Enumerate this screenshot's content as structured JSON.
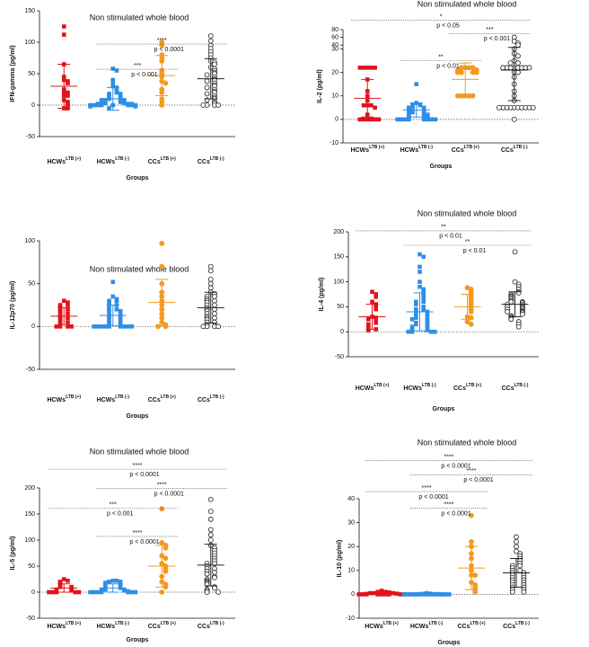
{
  "chart_data": [
    {
      "type": "strip",
      "title": "Non stimulated whole blood",
      "ylabel": "IFN-gamma (pg/ml)",
      "xlabel": "Groups",
      "categories": [
        "HCWs",
        "HCWs",
        "CCs",
        "CCs"
      ],
      "category_superscripts": [
        "LTB (+)",
        "LTB (-)",
        "LTB (+)",
        "LTB (-)"
      ],
      "ylim": [
        -50,
        150
      ],
      "yticks": [
        -50,
        0,
        50,
        100,
        150
      ],
      "series": [
        {
          "color": "#e3121b",
          "marker": "square",
          "filled": true,
          "mean": 30,
          "sd": 35,
          "values": [
            125,
            112,
            65,
            45,
            40,
            38,
            35,
            25,
            20,
            20,
            15,
            15,
            8,
            5,
            3,
            0,
            -5,
            -5
          ]
        },
        {
          "color": "#2f8fe6",
          "marker": "square",
          "filled": true,
          "mean": 10,
          "sd": 18,
          "values": [
            58,
            55,
            40,
            35,
            30,
            28,
            25,
            22,
            20,
            18,
            18,
            15,
            15,
            12,
            12,
            10,
            10,
            8,
            8,
            8,
            5,
            5,
            5,
            5,
            3,
            3,
            3,
            2,
            2,
            2,
            0,
            0,
            0,
            0,
            0,
            0,
            0,
            0,
            -2,
            -2,
            -5
          ]
        },
        {
          "color": "#f39a1e",
          "marker": "circle",
          "filled": true,
          "mean": 47,
          "sd": 32,
          "values": [
            100,
            95,
            80,
            75,
            70,
            55,
            50,
            45,
            38,
            35,
            25,
            20,
            10,
            5,
            0
          ]
        },
        {
          "color": "#222222",
          "marker": "circle",
          "filled": false,
          "mean": 42,
          "sd": 32,
          "values": [
            110,
            102,
            95,
            90,
            85,
            80,
            75,
            70,
            68,
            65,
            60,
            58,
            55,
            52,
            50,
            48,
            45,
            42,
            40,
            38,
            35,
            32,
            30,
            28,
            25,
            22,
            20,
            18,
            15,
            12,
            10,
            8,
            5,
            3,
            0,
            0,
            0,
            0
          ]
        }
      ],
      "annotations": [
        {
          "groups": [
            1,
            3
          ],
          "y": 97,
          "stars": "****",
          "label": "p < 0.0001"
        },
        {
          "groups": [
            1,
            2
          ],
          "y": 57,
          "stars": "***",
          "label": "p < 0.001"
        }
      ]
    },
    {
      "type": "strip",
      "title": "Non stimulated whole blood",
      "ylabel": "IL-2 (pg/ml)",
      "xlabel": "Groups",
      "categories": [
        "HCWs",
        "HCWs",
        "CCs",
        "CCs"
      ],
      "category_superscripts": [
        "LTB (+)",
        "LTB (-)",
        "LTB (+)",
        "LTB (-)"
      ],
      "ylim": [
        -10,
        80
      ],
      "yticks": [
        -10,
        0,
        10,
        20,
        30,
        40,
        60,
        80
      ],
      "ybreak": 30,
      "series": [
        {
          "color": "#e3121b",
          "marker": "square",
          "filled": true,
          "mean": 9,
          "sd": 8,
          "values": [
            22,
            22,
            22,
            22,
            22,
            17,
            12,
            10,
            8,
            6,
            6,
            6,
            5,
            2,
            0,
            0,
            0,
            0,
            0,
            0
          ]
        },
        {
          "color": "#2f8fe6",
          "marker": "square",
          "filled": true,
          "mean": 4,
          "sd": 3,
          "values": [
            15,
            7,
            6,
            6,
            5,
            5,
            5,
            4,
            4,
            3,
            3,
            3,
            2,
            2,
            2,
            1,
            1,
            1,
            0,
            0,
            0,
            0,
            0,
            0,
            0,
            0
          ]
        },
        {
          "color": "#f39a1e",
          "marker": "circle",
          "filled": true,
          "mean": 17,
          "sd": 7,
          "values": [
            22,
            22,
            22,
            22,
            21,
            21,
            20,
            20,
            20,
            20,
            10,
            10,
            10,
            10,
            10
          ]
        },
        {
          "color": "#222222",
          "marker": "circle",
          "filled": false,
          "mean": 21,
          "sd": 13,
          "values": [
            60,
            50,
            45,
            40,
            30,
            28,
            27,
            25,
            24,
            24,
            22,
            22,
            22,
            22,
            22,
            22,
            22,
            22,
            20,
            20,
            18,
            15,
            12,
            10,
            8,
            5,
            5,
            5,
            5,
            5,
            5,
            5,
            5,
            5,
            5,
            0
          ]
        }
      ],
      "annotations": [
        {
          "groups": [
            0,
            3
          ],
          "y": 104,
          "stars": "*",
          "label": "p < 0.05"
        },
        {
          "groups": [
            2,
            3
          ],
          "y": 70,
          "stars": "***",
          "label": "p < 0.001"
        },
        {
          "groups": [
            1,
            2
          ],
          "y": 25,
          "stars": "**",
          "label": "p < 0.01"
        }
      ]
    },
    {
      "type": "strip",
      "title": "Non stimulated whole blood",
      "ylabel": "IL-12p70 (pg/ml)",
      "xlabel": "Groups",
      "categories": [
        "HCWs",
        "HCWs",
        "CCs",
        "CCs"
      ],
      "category_superscripts": [
        "LTB (+)",
        "LTB (-)",
        "LTB (+)",
        "LTB (-)"
      ],
      "ylim": [
        -50,
        100
      ],
      "yticks": [
        -50,
        0,
        50,
        100
      ],
      "series": [
        {
          "color": "#e3121b",
          "marker": "square",
          "filled": true,
          "mean": 12,
          "sd": 10,
          "values": [
            30,
            28,
            25,
            25,
            22,
            20,
            20,
            18,
            15,
            15,
            12,
            10,
            10,
            8,
            5,
            5,
            2,
            0,
            0,
            0,
            0
          ]
        },
        {
          "color": "#2f8fe6",
          "marker": "square",
          "filled": true,
          "mean": 13,
          "sd": 12,
          "values": [
            52,
            35,
            32,
            30,
            30,
            28,
            25,
            25,
            22,
            20,
            20,
            18,
            18,
            15,
            15,
            12,
            12,
            10,
            10,
            8,
            8,
            5,
            5,
            3,
            2,
            0,
            0,
            0,
            0,
            0,
            0,
            0,
            0,
            0
          ]
        },
        {
          "color": "#f39a1e",
          "marker": "circle",
          "filled": true,
          "mean": 28,
          "sd": 27,
          "values": [
            97,
            70,
            50,
            40,
            35,
            30,
            25,
            20,
            15,
            10,
            5,
            2,
            0,
            0
          ]
        },
        {
          "color": "#222222",
          "marker": "circle",
          "filled": false,
          "mean": 22,
          "sd": 18,
          "values": [
            70,
            65,
            55,
            50,
            45,
            40,
            38,
            35,
            35,
            32,
            30,
            30,
            28,
            25,
            25,
            22,
            20,
            20,
            18,
            15,
            15,
            12,
            10,
            10,
            8,
            5,
            5,
            2,
            0,
            0,
            0,
            0
          ]
        }
      ],
      "annotations": []
    },
    {
      "type": "strip",
      "title": "Non stimulated whole blood",
      "ylabel": "IL-4 (pg/ml)",
      "xlabel": "Groups",
      "categories": [
        "HCWs",
        "HCWs",
        "CCs",
        "CCs"
      ],
      "category_superscripts": [
        "LTB (+)",
        "LTB (-)",
        "LTB (+)",
        "LTB (-)"
      ],
      "ylim": [
        -50,
        200
      ],
      "yticks": [
        -50,
        0,
        50,
        100,
        150,
        200
      ],
      "series": [
        {
          "color": "#e3121b",
          "marker": "square",
          "filled": true,
          "mean": 30,
          "sd": 25,
          "values": [
            80,
            75,
            70,
            60,
            55,
            50,
            45,
            30,
            28,
            25,
            20,
            18,
            15,
            12,
            10,
            5,
            5,
            3
          ]
        },
        {
          "color": "#2f8fe6",
          "marker": "square",
          "filled": true,
          "mean": 40,
          "sd": 38,
          "values": [
            155,
            150,
            130,
            120,
            100,
            90,
            85,
            80,
            75,
            70,
            65,
            60,
            60,
            55,
            50,
            45,
            45,
            40,
            40,
            35,
            35,
            30,
            30,
            28,
            25,
            25,
            22,
            20,
            18,
            15,
            15,
            12,
            10,
            10,
            8,
            5,
            5,
            3,
            2,
            0,
            0,
            0,
            0
          ]
        },
        {
          "color": "#f39a1e",
          "marker": "circle",
          "filled": true,
          "mean": 50,
          "sd": 25,
          "values": [
            88,
            85,
            80,
            75,
            70,
            65,
            60,
            55,
            50,
            45,
            40,
            30,
            28,
            20,
            15
          ]
        },
        {
          "color": "#222222",
          "marker": "circle",
          "filled": false,
          "mean": 55,
          "sd": 25,
          "values": [
            160,
            100,
            95,
            90,
            85,
            80,
            78,
            75,
            72,
            70,
            68,
            65,
            62,
            60,
            60,
            58,
            55,
            55,
            52,
            50,
            50,
            48,
            45,
            45,
            42,
            40,
            40,
            38,
            35,
            32,
            30,
            28,
            25,
            20,
            15,
            10
          ]
        }
      ],
      "annotations": [
        {
          "groups": [
            0,
            3
          ],
          "y": 202,
          "stars": "**",
          "label": "p < 0.01"
        },
        {
          "groups": [
            1,
            3
          ],
          "y": 173,
          "stars": "**",
          "label": "p < 0.01"
        }
      ]
    },
    {
      "type": "strip",
      "title": "Non stimulated whole blood",
      "ylabel": "IL-5 (pg/ml)",
      "xlabel": "Groups",
      "categories": [
        "HCWs",
        "HCWs",
        "CCs",
        "CCs"
      ],
      "category_superscripts": [
        "LTB (+)",
        "LTB (-)",
        "LTB (+)",
        "LTB (-)"
      ],
      "ylim": [
        -50,
        200
      ],
      "yticks": [
        -50,
        0,
        50,
        100,
        150,
        200
      ],
      "series": [
        {
          "color": "#e3121b",
          "marker": "square",
          "filled": true,
          "mean": 8,
          "sd": 8,
          "values": [
            25,
            22,
            20,
            18,
            15,
            12,
            10,
            10,
            8,
            5,
            5,
            3,
            2,
            0,
            0,
            0,
            0,
            0
          ]
        },
        {
          "color": "#2f8fe6",
          "marker": "square",
          "filled": true,
          "mean": 8,
          "sd": 8,
          "values": [
            22,
            22,
            20,
            20,
            18,
            15,
            15,
            12,
            10,
            10,
            8,
            8,
            5,
            5,
            5,
            3,
            3,
            2,
            0,
            0,
            0,
            0,
            0,
            0,
            0
          ]
        },
        {
          "color": "#f39a1e",
          "marker": "circle",
          "filled": true,
          "mean": 50,
          "sd": 40,
          "values": [
            160,
            95,
            90,
            85,
            70,
            65,
            55,
            50,
            45,
            40,
            30,
            20,
            15,
            10,
            0
          ]
        },
        {
          "color": "#222222",
          "marker": "circle",
          "filled": false,
          "mean": 52,
          "sd": 40,
          "values": [
            178,
            155,
            140,
            120,
            110,
            100,
            90,
            85,
            80,
            75,
            70,
            65,
            60,
            55,
            55,
            50,
            45,
            45,
            40,
            38,
            35,
            30,
            28,
            25,
            22,
            20,
            18,
            15,
            10,
            8,
            5,
            3,
            0,
            0
          ]
        }
      ],
      "annotations": [
        {
          "groups": [
            0,
            3
          ],
          "y": 236,
          "stars": "****",
          "label": "p < 0.0001"
        },
        {
          "groups": [
            1,
            3
          ],
          "y": 199,
          "stars": "****",
          "label": "p < 0.0001"
        },
        {
          "groups": [
            0,
            2
          ],
          "y": 161,
          "stars": "***",
          "label": "p < 0.001"
        },
        {
          "groups": [
            1,
            2
          ],
          "y": 107,
          "stars": "****",
          "label": "p < 0.0001"
        }
      ]
    },
    {
      "type": "strip",
      "title": "Non stimulated whole blood",
      "ylabel": "IL-10 (pg/ml)",
      "xlabel": "Groups",
      "categories": [
        "HCWs",
        "HCWs",
        "CCs",
        "CCs"
      ],
      "category_superscripts": [
        "LTB (+)",
        "LTB (-)",
        "LTB (+)",
        "LTB (-)"
      ],
      "ylim": [
        -10,
        40
      ],
      "yticks": [
        -10,
        0,
        10,
        20,
        30,
        40
      ],
      "series": [
        {
          "color": "#e3121b",
          "marker": "square",
          "filled": true,
          "mean": 0.4,
          "sd": 0.5,
          "values": [
            1.5,
            1,
            1,
            0.8,
            0.5,
            0.5,
            0.5,
            0.3,
            0.2,
            0,
            0,
            0,
            0,
            0,
            0,
            0,
            0,
            0
          ]
        },
        {
          "color": "#2f8fe6",
          "marker": "square",
          "filled": true,
          "mean": 0.1,
          "sd": 0.2,
          "values": [
            0.5,
            0.3,
            0.2,
            0.1,
            0.1,
            0.1,
            0,
            0,
            0,
            0,
            0,
            0,
            0,
            0,
            0,
            0,
            0,
            0,
            0,
            0,
            0,
            0
          ]
        },
        {
          "color": "#f39a1e",
          "marker": "circle",
          "filled": true,
          "mean": 11,
          "sd": 9,
          "values": [
            33,
            22,
            20,
            17,
            15,
            12,
            10,
            8,
            8,
            5,
            4,
            3,
            2,
            1
          ]
        },
        {
          "color": "#222222",
          "marker": "circle",
          "filled": false,
          "mean": 9,
          "sd": 6,
          "values": [
            24,
            22,
            20,
            18,
            17,
            16,
            15,
            14,
            13,
            12,
            12,
            11,
            10,
            10,
            9,
            9,
            8,
            8,
            7,
            7,
            6,
            6,
            5,
            5,
            4,
            4,
            3,
            3,
            2,
            2,
            1,
            1
          ]
        }
      ],
      "annotations": [
        {
          "groups": [
            0,
            3
          ],
          "y": 56,
          "stars": "****",
          "label": "p < 0.0001"
        },
        {
          "groups": [
            1,
            3
          ],
          "y": 50,
          "stars": "****",
          "label": "p < 0.0001"
        },
        {
          "groups": [
            0,
            2
          ],
          "y": 43,
          "stars": "****",
          "label": "p < 0.0001"
        },
        {
          "groups": [
            1,
            2
          ],
          "y": 36,
          "stars": "****",
          "label": "p < 0.0001"
        }
      ]
    }
  ]
}
